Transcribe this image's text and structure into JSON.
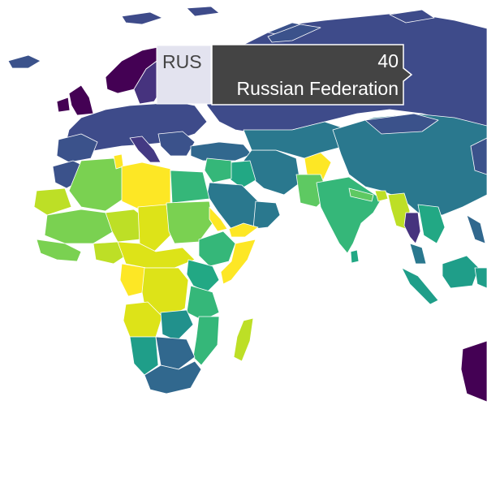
{
  "colors": {
    "viridis_dark": "#440154",
    "viridis_deep_blue": "#3b528b",
    "viridis_teal": "#21918c",
    "viridis_green": "#5ec962",
    "viridis_yellow": "#fde725",
    "tooltip_bg": "#444444",
    "tooltip_text": "#ffffff",
    "hover_highlight": "#e3e3ef"
  },
  "tooltip": {
    "code": "RUS",
    "value": "40",
    "name": "Russian Federation"
  }
}
